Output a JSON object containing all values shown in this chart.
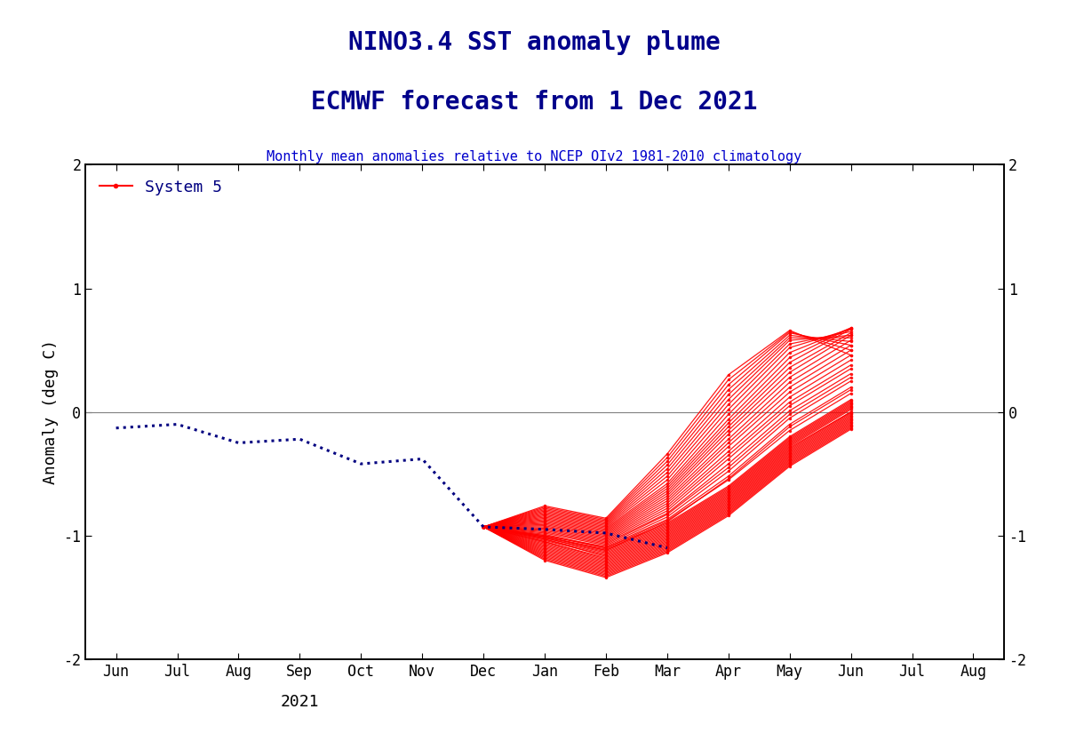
{
  "title_line1": "NINO3.4 SST anomaly plume",
  "title_line2": "ECMWF forecast from 1 Dec 2021",
  "subtitle": "Monthly mean anomalies relative to NCEP OIv2 1981-2010 climatology",
  "title_color": "#00008B",
  "subtitle_color": "#0000CD",
  "ylabel": "Anomaly (deg C)",
  "ylim": [
    -2,
    2
  ],
  "yticks": [
    -2,
    -1,
    0,
    1,
    2
  ],
  "legend_label": "System 5",
  "x_labels": [
    "Jun",
    "Jul",
    "Aug",
    "Sep",
    "Oct",
    "Nov",
    "Dec",
    "Jan",
    "Feb",
    "Mar",
    "Apr",
    "May",
    "Jun",
    "Jul",
    "Aug"
  ],
  "x_label_below": "2021",
  "obs_color": "#000080",
  "ensemble_color": "#FF0000",
  "background_color": "#FFFFFF",
  "obs_x": [
    0,
    1,
    2,
    3,
    4,
    5,
    6,
    7,
    8,
    9
  ],
  "obs_y": [
    -0.13,
    -0.1,
    -0.25,
    -0.22,
    -0.42,
    -0.38,
    -0.93,
    -0.95,
    -0.98,
    -1.1
  ],
  "ens_x": [
    6,
    7,
    8,
    9,
    10,
    11,
    12
  ],
  "ensemble_members": [
    [
      -0.93,
      -1.0,
      -1.1,
      -0.9,
      -0.6,
      -0.2,
      0.1
    ],
    [
      -0.93,
      -1.01,
      -1.12,
      -0.92,
      -0.62,
      -0.22,
      0.08
    ],
    [
      -0.93,
      -1.02,
      -1.13,
      -0.93,
      -0.63,
      -0.23,
      0.07
    ],
    [
      -0.93,
      -1.01,
      -1.11,
      -0.91,
      -0.61,
      -0.21,
      0.09
    ],
    [
      -0.93,
      -0.99,
      -1.1,
      -0.88,
      -0.55,
      -0.15,
      0.15
    ],
    [
      -0.93,
      -1.03,
      -1.15,
      -0.95,
      -0.65,
      -0.25,
      0.05
    ],
    [
      -0.93,
      -1.04,
      -1.16,
      -0.96,
      -0.66,
      -0.26,
      0.04
    ],
    [
      -0.93,
      -1.05,
      -1.18,
      -0.98,
      -0.68,
      -0.28,
      0.02
    ],
    [
      -0.93,
      -1.02,
      -1.14,
      -0.94,
      -0.64,
      -0.24,
      0.06
    ],
    [
      -0.93,
      -1.0,
      -1.09,
      -0.87,
      -0.52,
      -0.1,
      0.2
    ],
    [
      -0.93,
      -1.01,
      -1.12,
      -0.89,
      -0.54,
      -0.12,
      0.18
    ],
    [
      -0.93,
      -1.03,
      -1.17,
      -0.97,
      -0.67,
      -0.27,
      0.03
    ],
    [
      -0.93,
      -1.06,
      -1.2,
      -1.0,
      -0.7,
      -0.3,
      0.0
    ],
    [
      -0.93,
      -1.07,
      -1.21,
      -1.01,
      -0.71,
      -0.31,
      -0.01
    ],
    [
      -0.93,
      -1.08,
      -1.22,
      -1.02,
      -0.72,
      -0.32,
      -0.02
    ],
    [
      -0.93,
      -1.09,
      -1.23,
      -1.03,
      -0.73,
      -0.33,
      -0.03
    ],
    [
      -0.93,
      -1.1,
      -1.24,
      -1.04,
      -0.74,
      -0.34,
      -0.04
    ],
    [
      -0.93,
      -1.11,
      -1.25,
      -1.05,
      -0.75,
      -0.35,
      -0.05
    ],
    [
      -0.93,
      -1.12,
      -1.26,
      -1.06,
      -0.76,
      -0.36,
      -0.06
    ],
    [
      -0.93,
      -1.13,
      -1.27,
      -1.07,
      -0.77,
      -0.37,
      -0.07
    ],
    [
      -0.93,
      -1.14,
      -1.28,
      -1.08,
      -0.78,
      -0.38,
      -0.08
    ],
    [
      -0.93,
      -1.05,
      -1.19,
      -0.99,
      -0.69,
      -0.29,
      -0.0
    ],
    [
      -0.93,
      -0.98,
      -1.08,
      -0.85,
      -0.48,
      -0.05,
      0.25
    ],
    [
      -0.93,
      -0.97,
      -1.07,
      -0.83,
      -0.45,
      -0.02,
      0.28
    ],
    [
      -0.93,
      -0.96,
      -1.06,
      -0.82,
      -0.42,
      0.01,
      0.31
    ],
    [
      -0.93,
      -0.95,
      -1.05,
      -0.8,
      -0.38,
      0.05,
      0.35
    ],
    [
      -0.93,
      -0.94,
      -1.04,
      -0.78,
      -0.35,
      0.08,
      0.38
    ],
    [
      -0.93,
      -0.93,
      -1.03,
      -0.76,
      -0.32,
      0.12,
      0.42
    ],
    [
      -0.93,
      -0.92,
      -1.02,
      -0.74,
      -0.28,
      0.16,
      0.46
    ],
    [
      -0.93,
      -0.91,
      -1.01,
      -0.72,
      -0.25,
      0.2,
      0.5
    ],
    [
      -0.93,
      -0.9,
      -1.0,
      -0.7,
      -0.22,
      0.24,
      0.54
    ],
    [
      -0.93,
      -0.89,
      -0.99,
      -0.68,
      -0.18,
      0.28,
      0.58
    ],
    [
      -0.93,
      -0.88,
      -0.98,
      -0.66,
      -0.15,
      0.32,
      0.62
    ],
    [
      -0.93,
      -0.87,
      -0.97,
      -0.64,
      -0.12,
      0.36,
      0.64
    ],
    [
      -0.93,
      -0.86,
      -0.96,
      -0.62,
      -0.09,
      0.4,
      0.67
    ],
    [
      -0.93,
      -0.85,
      -0.95,
      -0.6,
      -0.06,
      0.44,
      0.68
    ],
    [
      -0.93,
      -1.15,
      -1.29,
      -1.09,
      -0.79,
      -0.39,
      -0.09
    ],
    [
      -0.93,
      -1.16,
      -1.3,
      -1.1,
      -0.8,
      -0.4,
      -0.1
    ],
    [
      -0.93,
      -1.17,
      -1.31,
      -1.11,
      -0.81,
      -0.41,
      -0.11
    ],
    [
      -0.93,
      -1.18,
      -1.32,
      -1.12,
      -0.82,
      -0.42,
      -0.12
    ],
    [
      -0.93,
      -0.84,
      -0.94,
      -0.58,
      -0.02,
      0.48,
      0.68
    ],
    [
      -0.93,
      -0.83,
      -0.93,
      -0.55,
      0.02,
      0.52,
      0.67
    ],
    [
      -0.93,
      -0.82,
      -0.92,
      -0.52,
      0.06,
      0.55,
      0.65
    ],
    [
      -0.93,
      -1.19,
      -1.33,
      -1.13,
      -0.83,
      -0.43,
      -0.13
    ],
    [
      -0.93,
      -1.2,
      -1.34,
      -1.14,
      -0.84,
      -0.44,
      -0.14
    ],
    [
      -0.93,
      -0.81,
      -0.91,
      -0.49,
      0.1,
      0.58,
      0.62
    ],
    [
      -0.93,
      -0.8,
      -0.9,
      -0.46,
      0.14,
      0.6,
      0.6
    ],
    [
      -0.93,
      -0.79,
      -0.89,
      -0.43,
      0.18,
      0.62,
      0.57
    ],
    [
      -0.93,
      -0.78,
      -0.88,
      -0.4,
      0.22,
      0.64,
      0.54
    ],
    [
      -0.93,
      -0.77,
      -0.87,
      -0.37,
      0.26,
      0.65,
      0.5
    ],
    [
      -0.93,
      -0.76,
      -0.86,
      -0.34,
      0.3,
      0.66,
      0.46
    ]
  ]
}
